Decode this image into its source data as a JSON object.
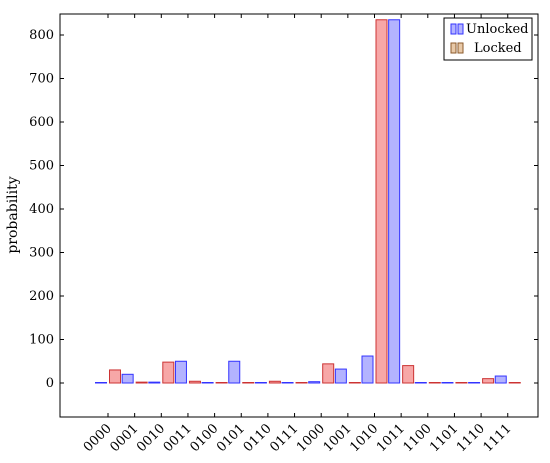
{
  "chart_data": {
    "type": "bar",
    "categories": [
      "0000",
      "0001",
      "0010",
      "0011",
      "0100",
      "0101",
      "0110",
      "0111",
      "1000",
      "1001",
      "1010",
      "1011",
      "1100",
      "1101",
      "1110",
      "1111"
    ],
    "series": [
      {
        "name": "Unlocked",
        "color": "#b3b3ff",
        "stroke": "#3333ff",
        "values": [
          0,
          20,
          2,
          50,
          0,
          50,
          0,
          0,
          3,
          32,
          62,
          835,
          0,
          0,
          0,
          16
        ]
      },
      {
        "name": "Locked",
        "color": "#f7a7a7",
        "stroke": "#cc3333",
        "values": [
          30,
          2,
          48,
          4,
          0,
          0,
          4,
          0,
          44,
          0,
          835,
          40,
          0,
          0,
          10,
          0
        ]
      }
    ],
    "ylabel": "probability",
    "xlabel": "",
    "ylim": [
      -80,
      845
    ],
    "yticks": [
      0,
      100,
      200,
      300,
      400,
      500,
      600,
      700,
      800
    ],
    "legend": {
      "position": "top-right",
      "entries": [
        {
          "label": "Unlocked",
          "icon": "legend-bar-icon",
          "color": "#b3b3ff",
          "stroke": "#3333ff"
        },
        {
          "label": "Locked",
          "icon": "legend-bar-icon",
          "color": "#e8c9a8",
          "stroke": "#8b5a2b"
        }
      ]
    }
  }
}
